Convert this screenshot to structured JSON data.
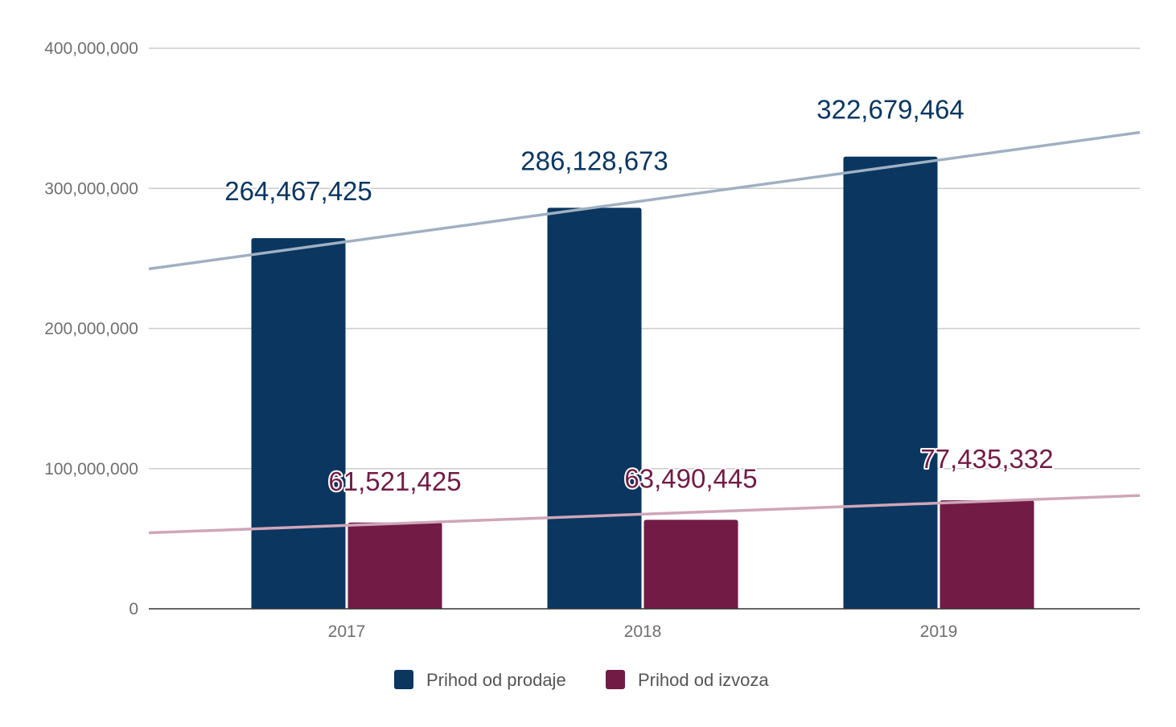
{
  "chart_data": {
    "type": "bar",
    "title": "",
    "xlabel": "",
    "ylabel": "",
    "categories": [
      "2017",
      "2018",
      "2019"
    ],
    "ylim": [
      0,
      400000000
    ],
    "yticks": [
      0,
      100000000,
      200000000,
      300000000,
      400000000
    ],
    "ytick_labels": [
      "0",
      "100,000,000",
      "200,000,000",
      "300,000,000",
      "400,000,000"
    ],
    "grid": true,
    "legend_position": "bottom",
    "series": [
      {
        "name": "Prihod od prodaje",
        "color": "#0a3660",
        "values": [
          264467425,
          286128673,
          322679464
        ],
        "value_labels": [
          "264,467,425",
          "286,128,673",
          "322,679,464"
        ],
        "trendline_color": "#a0b0c2"
      },
      {
        "name": "Prihod od izvoza",
        "color": "#721b45",
        "values": [
          61521425,
          63490445,
          77435332
        ],
        "value_labels": [
          "61,521,425",
          "63,490,445",
          "77,435,332"
        ],
        "trendline_color": "#cfa6b8"
      }
    ]
  }
}
